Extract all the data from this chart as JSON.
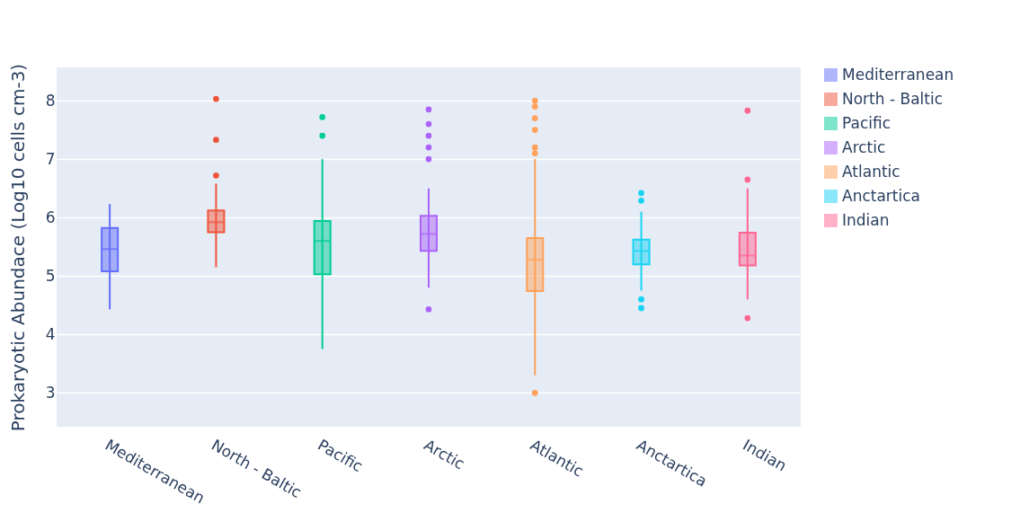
{
  "chart_data": {
    "type": "box",
    "ylabel": "Prokaryotic Abundace (Log10 cells cm-3)",
    "categories": [
      "Mediterranean",
      "North - Baltic",
      "Pacific",
      "Arctic",
      "Atlantic",
      "Anctartica",
      "Indian"
    ],
    "series": [
      {
        "name": "Mediterranean",
        "color": "#636efa",
        "x": [
          "Mediterranean"
        ],
        "boxes": [
          {
            "low": 4.43,
            "q1": 5.08,
            "median": 5.46,
            "q3": 5.82,
            "high": 6.23
          }
        ]
      },
      {
        "name": "North - Baltic",
        "color": "#ef553b",
        "x": [
          "North - Baltic"
        ],
        "boxes": [
          {
            "low": 5.15,
            "q1": 5.75,
            "median": 5.92,
            "q3": 6.12,
            "high": 6.58,
            "outliers": [
              6.72,
              7.33,
              8.03
            ]
          }
        ]
      },
      {
        "name": "Pacific",
        "color": "#00cc96",
        "x": [
          "Pacific"
        ],
        "boxes": [
          {
            "low": 3.75,
            "q1": 5.03,
            "median": 5.6,
            "q3": 5.94,
            "high": 7.0,
            "outliers": [
              7.4,
              7.72
            ]
          }
        ]
      },
      {
        "name": "Arctic",
        "color": "#ab63fa",
        "x": [
          "Arctic"
        ],
        "boxes": [
          {
            "low": 4.8,
            "q1": 5.43,
            "median": 5.72,
            "q3": 6.03,
            "high": 6.5,
            "outliers": [
              4.43,
              7.0,
              7.2,
              7.4,
              7.6,
              7.85
            ]
          }
        ]
      },
      {
        "name": "Atlantic",
        "color": "#ffa15a",
        "x": [
          "Atlantic"
        ],
        "boxes": [
          {
            "low": 3.3,
            "q1": 4.74,
            "median": 5.28,
            "q3": 5.65,
            "high": 7.0,
            "outliers": [
              3.0,
              7.1,
              7.2,
              7.5,
              7.7,
              7.9,
              8.0
            ]
          }
        ]
      },
      {
        "name": "Anctartica",
        "color": "#19d3f3",
        "x": [
          "Anctartica"
        ],
        "boxes": [
          {
            "low": 4.75,
            "q1": 5.2,
            "median": 5.43,
            "q3": 5.62,
            "high": 6.1,
            "outliers": [
              4.45,
              4.6,
              6.29,
              6.42
            ]
          }
        ]
      },
      {
        "name": "Indian",
        "color": "#ff6692",
        "x": [
          "Indian"
        ],
        "boxes": [
          {
            "low": 4.6,
            "q1": 5.18,
            "median": 5.35,
            "q3": 5.74,
            "high": 6.5,
            "outliers": [
              4.28,
              6.65,
              7.83
            ]
          }
        ]
      }
    ],
    "ylim": [
      2.42,
      8.57
    ],
    "yticks": [
      3,
      4,
      5,
      6,
      7,
      8
    ],
    "grid": "y",
    "legend": "right"
  }
}
